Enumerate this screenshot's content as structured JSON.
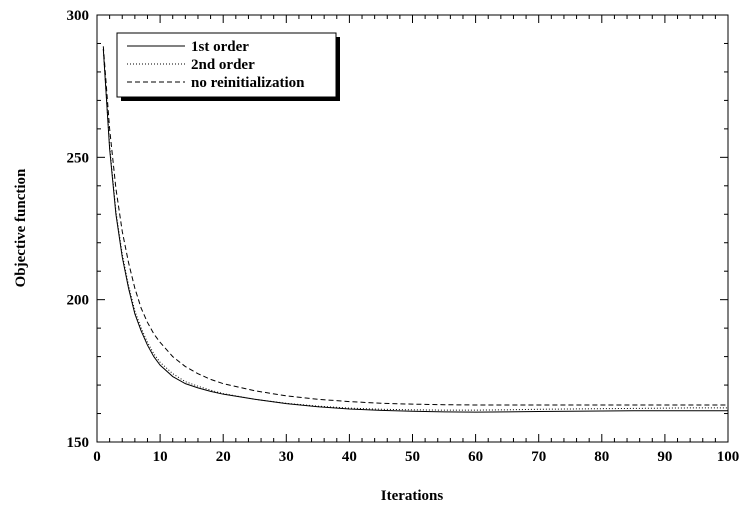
{
  "chart_data": {
    "type": "line",
    "xlabel": "Iterations",
    "ylabel": "Objective function",
    "xlim": [
      0,
      100
    ],
    "ylim": [
      150,
      300
    ],
    "x_ticks": [
      0,
      10,
      20,
      30,
      40,
      50,
      60,
      70,
      80,
      90,
      100
    ],
    "y_ticks": [
      150,
      200,
      250,
      300
    ],
    "grid": false,
    "legend_position": "top-left",
    "x": [
      1,
      2,
      3,
      4,
      5,
      6,
      7,
      8,
      9,
      10,
      12,
      14,
      16,
      18,
      20,
      25,
      30,
      35,
      40,
      45,
      50,
      55,
      60,
      65,
      70,
      75,
      80,
      85,
      90,
      95,
      100
    ],
    "series": [
      {
        "name": "1st order",
        "style": "solid",
        "values": [
          288,
          253,
          230,
          215,
          204,
          195,
          189,
          184,
          180,
          177,
          173,
          170.5,
          169,
          167.8,
          166.8,
          165,
          163.5,
          162.4,
          161.6,
          161.1,
          160.8,
          160.6,
          160.5,
          160.6,
          160.7,
          160.8,
          160.9,
          161,
          161,
          161,
          161
        ]
      },
      {
        "name": "2nd order",
        "style": "dotted",
        "values": [
          288,
          254,
          231,
          216,
          205,
          196,
          190,
          185,
          181,
          178,
          174,
          171.2,
          169.6,
          168.2,
          167,
          165,
          163.6,
          162.6,
          161.9,
          161.5,
          161.3,
          161.2,
          161.2,
          161.3,
          161.5,
          161.6,
          161.7,
          161.8,
          161.9,
          162,
          162
        ]
      },
      {
        "name": "no reinitialization",
        "style": "dashed",
        "values": [
          289,
          260,
          239,
          224,
          213,
          204,
          197,
          192,
          188,
          185,
          180,
          176.5,
          174,
          172,
          170.5,
          168,
          166.2,
          165,
          164.2,
          163.6,
          163.3,
          163.1,
          163,
          163,
          163,
          163,
          163,
          163,
          163,
          163,
          163
        ]
      }
    ]
  }
}
